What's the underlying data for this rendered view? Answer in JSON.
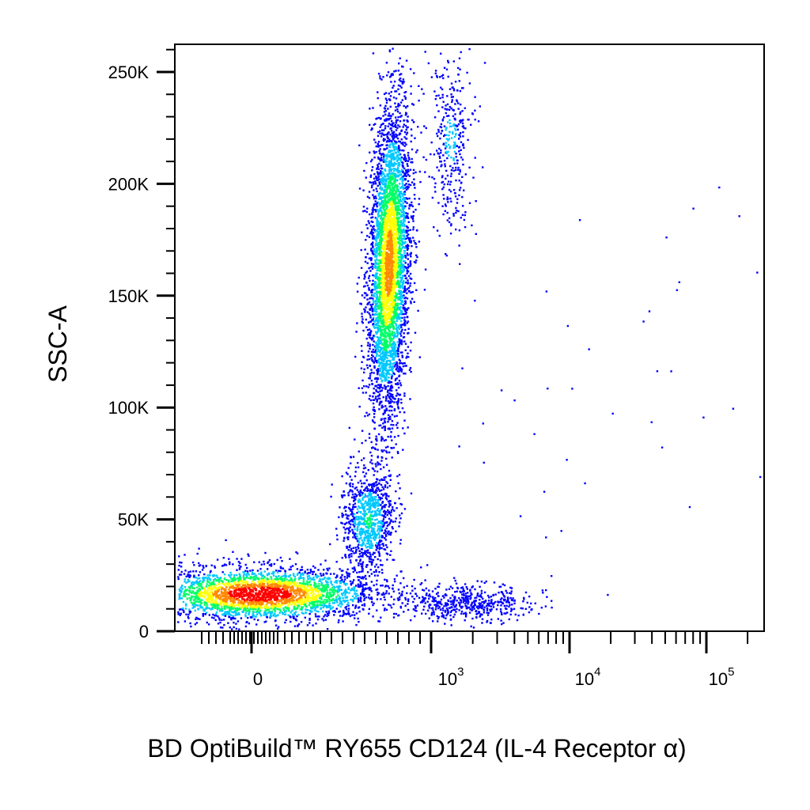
{
  "chart_data": {
    "type": "scatter",
    "subtype": "flow-cytometry-density-dot-plot",
    "title": "",
    "xlabel": "BD OptiBuild™ RY655 CD124 (IL-4 Receptor α)",
    "ylabel": "SSC-A",
    "x_scale": "biexponential",
    "y_scale": "linear",
    "ylim": [
      -3000,
      262144
    ],
    "xlim": [
      -300,
      262144
    ],
    "x_ticks": [
      {
        "value": 0,
        "base": "0",
        "exp": ""
      },
      {
        "value": 1000,
        "base": "10",
        "exp": "3"
      },
      {
        "value": 10000,
        "base": "10",
        "exp": "4"
      },
      {
        "value": 100000,
        "base": "10",
        "exp": "5"
      }
    ],
    "y_ticks": [
      {
        "value": 0,
        "label": "0"
      },
      {
        "value": 50000,
        "label": "50K"
      },
      {
        "value": 100000,
        "label": "100K"
      },
      {
        "value": 150000,
        "label": "150K"
      },
      {
        "value": 200000,
        "label": "200K"
      },
      {
        "value": 250000,
        "label": "250K"
      }
    ],
    "color_scale": [
      "#0000ff",
      "#00c8ff",
      "#00ff66",
      "#ffff00",
      "#ff8800",
      "#ff0000"
    ],
    "grid": false,
    "populations": [
      {
        "x_center": 10,
        "y_center": 17000,
        "x_spread": 80,
        "y_spread": 6000,
        "count": 3000,
        "peak_density": 1.0
      },
      {
        "x_center": 420,
        "y_center": 165000,
        "x_spread": 110,
        "y_spread": 35000,
        "count": 4200,
        "peak_density": 0.75
      },
      {
        "x_center": 260,
        "y_center": 50000,
        "x_spread": 90,
        "y_spread": 12000,
        "count": 900,
        "peak_density": 0.35
      },
      {
        "x_center": 1500,
        "y_center": 220000,
        "x_spread": 300,
        "y_spread": 20000,
        "count": 350,
        "peak_density": 0.2
      },
      {
        "x_center": 2000,
        "y_center": 13000,
        "x_spread": 1500,
        "y_spread": 4000,
        "count": 500,
        "peak_density": 0.15
      }
    ]
  }
}
